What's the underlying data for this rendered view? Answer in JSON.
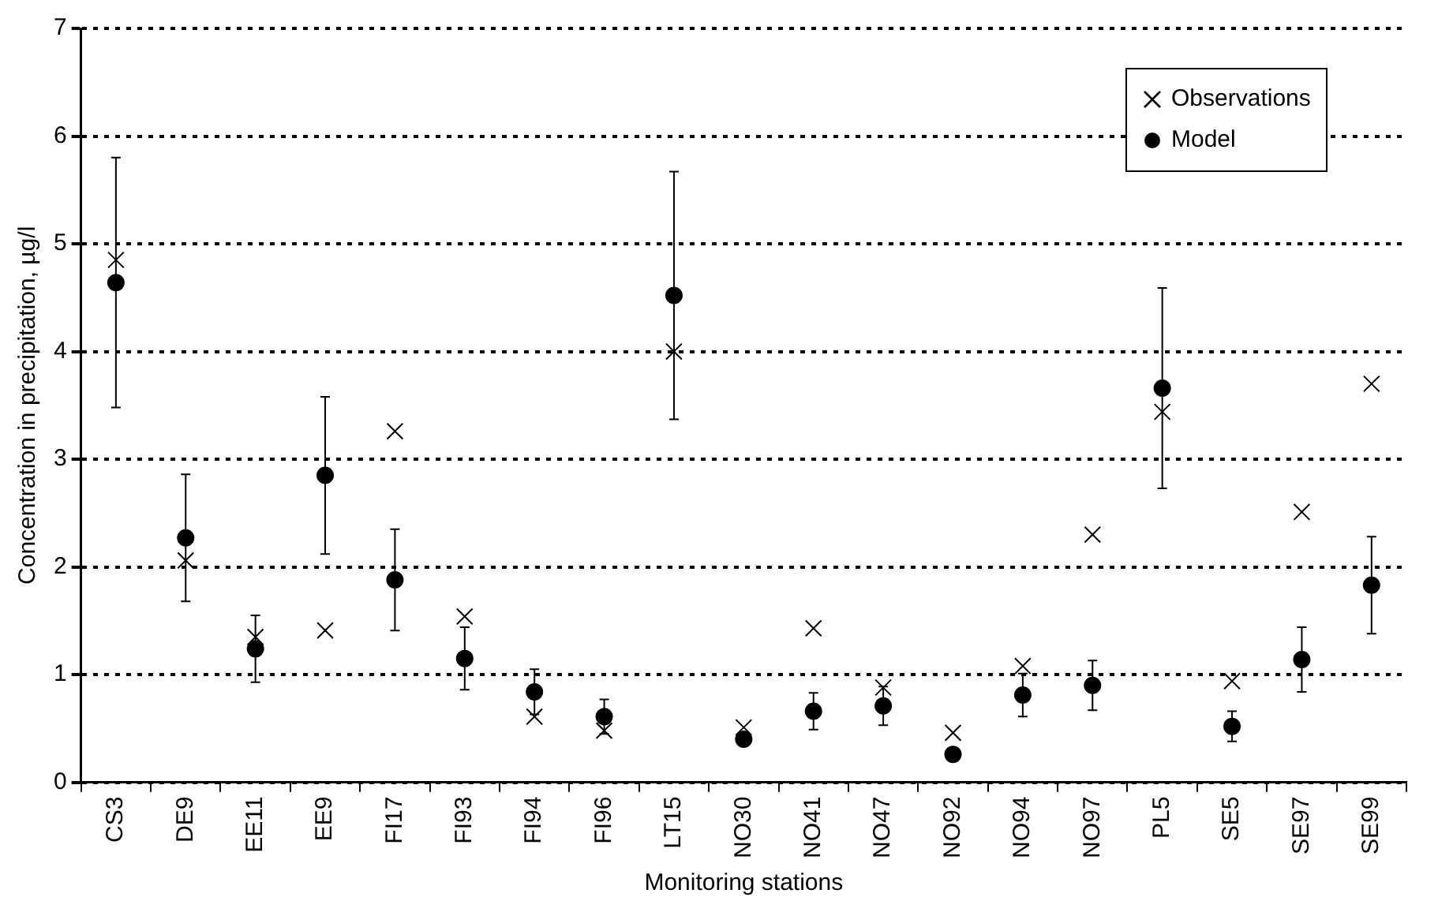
{
  "chart_data": {
    "type": "scatter",
    "xlabel": "Monitoring stations",
    "ylabel": "Concentration in precipitation, µg/l",
    "categories": [
      "CS3",
      "DE9",
      "EE11",
      "EE9",
      "FI17",
      "FI93",
      "FI94",
      "FI96",
      "LT15",
      "NO30",
      "NO41",
      "NO47",
      "NO92",
      "NO94",
      "NO97",
      "PL5",
      "SE5",
      "SE97",
      "SE99"
    ],
    "series": [
      {
        "name": "Observations",
        "color": "#000000",
        "marker": "cross",
        "values": [
          4.85,
          2.06,
          1.35,
          1.41,
          3.26,
          1.54,
          0.61,
          0.48,
          4.0,
          0.51,
          1.43,
          0.88,
          0.46,
          1.08,
          2.3,
          3.44,
          0.94,
          2.51,
          3.7
        ]
      },
      {
        "name": "Model",
        "color": "#000000",
        "marker": "circle",
        "values": [
          4.64,
          2.27,
          1.24,
          2.85,
          1.88,
          1.15,
          0.84,
          0.61,
          4.52,
          0.4,
          0.66,
          0.71,
          0.26,
          0.81,
          0.9,
          3.66,
          0.52,
          1.14,
          1.83
        ],
        "errors": [
          1.16,
          0.59,
          0.31,
          0.73,
          0.47,
          0.29,
          0.21,
          0.16,
          1.15,
          null,
          0.17,
          0.18,
          null,
          0.2,
          0.23,
          0.93,
          0.14,
          0.3,
          0.45
        ]
      }
    ],
    "ylim": [
      0,
      7
    ],
    "yticks": [
      0,
      1,
      2,
      3,
      4,
      5,
      6,
      7
    ],
    "grid": "y",
    "legend": "top right"
  }
}
